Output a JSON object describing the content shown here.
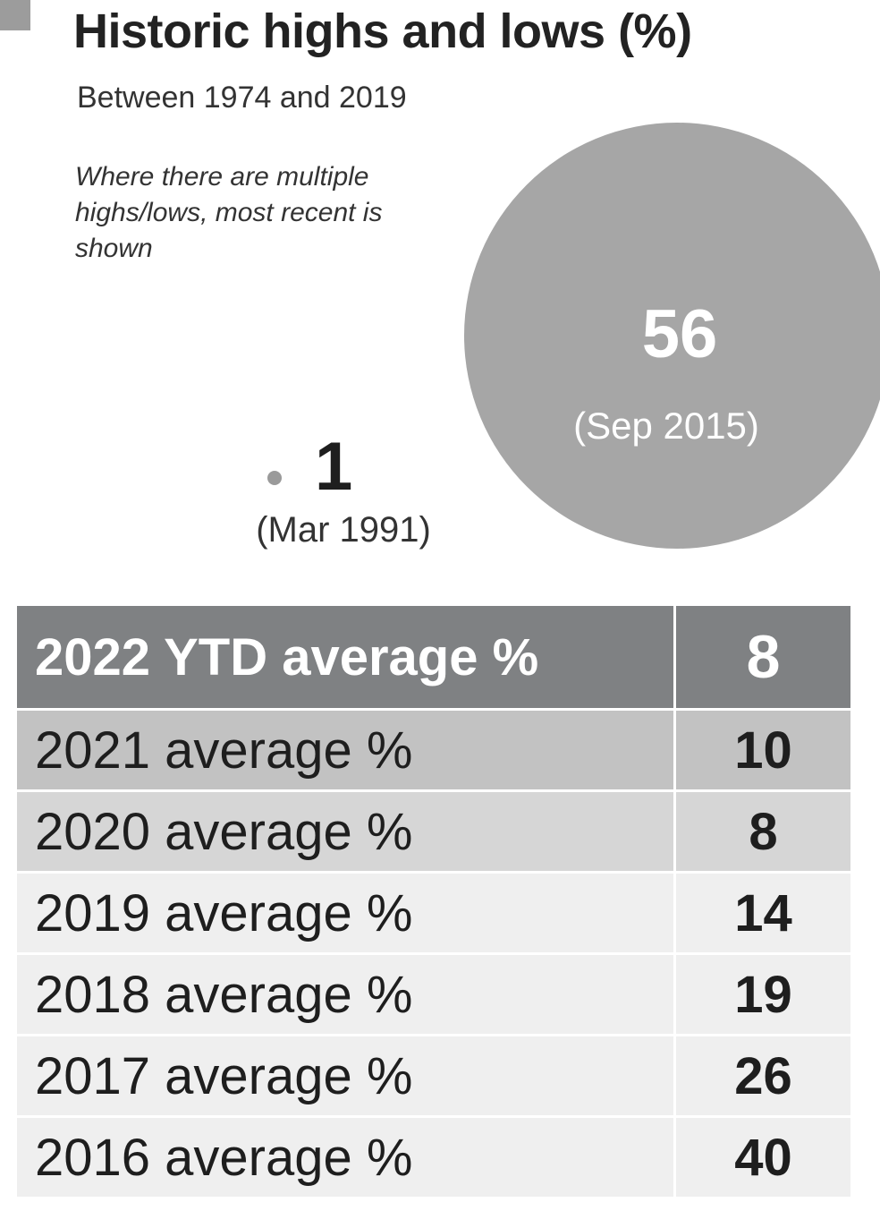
{
  "title": "Historic highs and lows (%)",
  "subtitle": "Between 1974 and 2019",
  "note": "Where there are multiple highs/lows, most recent is shown",
  "colors": {
    "bubble": "#a6a6a6",
    "header": "#7f8183",
    "row_dark": "#c2c2c2",
    "row_mid": "#d6d6d6",
    "row_light": "#efefef"
  },
  "chart_data": {
    "type": "table",
    "extremes": [
      {
        "label": "high",
        "value": 56,
        "date": "(Sep 2015)"
      },
      {
        "label": "low",
        "value": 1,
        "date": "(Mar 1991)"
      }
    ],
    "rows": [
      {
        "label": "2022 YTD average %",
        "value": 8
      },
      {
        "label": "2021 average %",
        "value": 10
      },
      {
        "label": "2020 average %",
        "value": 8
      },
      {
        "label": "2019 average %",
        "value": 14
      },
      {
        "label": "2018 average %",
        "value": 19
      },
      {
        "label": "2017 average %",
        "value": 26
      },
      {
        "label": "2016 average %",
        "value": 40
      }
    ]
  }
}
